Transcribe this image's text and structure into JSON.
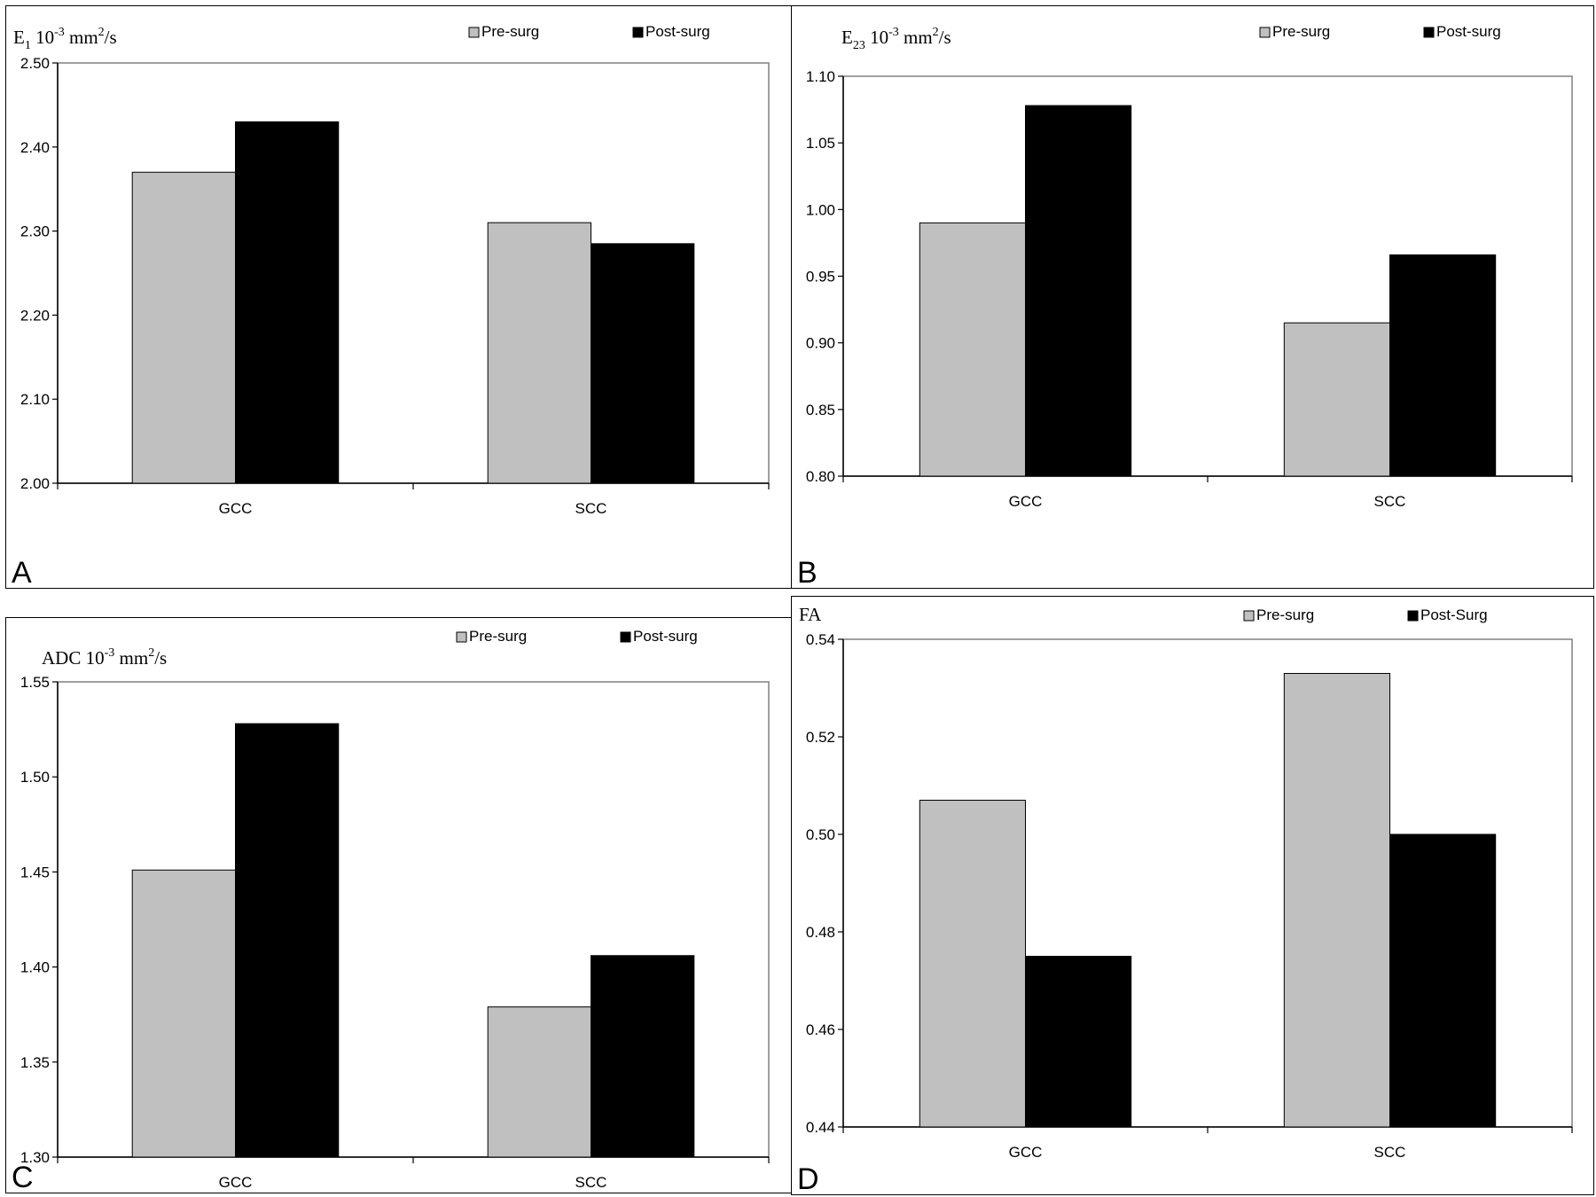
{
  "colors": {
    "pre": "#c0c0c0",
    "post": "#000000",
    "axis": "#808080"
  },
  "chart_data": [
    {
      "panel_letter": "A",
      "type": "bar",
      "title": {
        "base": "E",
        "sub": "1",
        "mid": " 10",
        "sup": "-3",
        "unit": " mm",
        "unit_sup": "2",
        "tail": "/s"
      },
      "categories": [
        "GCC",
        "SCC"
      ],
      "series": [
        {
          "name": "Pre-surg",
          "values": [
            2.37,
            2.31
          ]
        },
        {
          "name": "Post-surg",
          "values": [
            2.43,
            2.285
          ]
        }
      ],
      "ylim": [
        2.0,
        2.5
      ],
      "yticks": [
        "2.00",
        "2.10",
        "2.20",
        "2.30",
        "2.40",
        "2.50"
      ],
      "legend": "top-right",
      "grid": false
    },
    {
      "panel_letter": "B",
      "type": "bar",
      "title": {
        "base": "E",
        "sub": "23",
        "mid": " 10",
        "sup": "-3",
        "unit": " mm",
        "unit_sup": "2",
        "tail": "/s"
      },
      "categories": [
        "GCC",
        "SCC"
      ],
      "series": [
        {
          "name": "Pre-surg",
          "values": [
            0.99,
            0.915
          ]
        },
        {
          "name": "Post-surg",
          "values": [
            1.078,
            0.966
          ]
        }
      ],
      "ylim": [
        0.8,
        1.1
      ],
      "yticks": [
        "0.80",
        "0.85",
        "0.90",
        "0.95",
        "1.00",
        "1.05",
        "1.10"
      ],
      "legend": "top-right",
      "grid": false
    },
    {
      "panel_letter": "C",
      "type": "bar",
      "title": {
        "base": "ADC",
        "sub": "",
        "mid": " 10",
        "sup": "-3",
        "unit": " mm",
        "unit_sup": "2",
        "tail": "/s"
      },
      "categories": [
        "GCC",
        "SCC"
      ],
      "series": [
        {
          "name": "Pre-surg",
          "values": [
            1.451,
            1.379
          ]
        },
        {
          "name": "Post-surg",
          "values": [
            1.528,
            1.406
          ]
        }
      ],
      "ylim": [
        1.3,
        1.55
      ],
      "yticks": [
        "1.30",
        "1.35",
        "1.40",
        "1.45",
        "1.50",
        "1.55"
      ],
      "legend": "top-right",
      "grid": false
    },
    {
      "panel_letter": "D",
      "type": "bar",
      "title": {
        "base": "FA",
        "sub": "",
        "mid": "",
        "sup": "",
        "unit": "",
        "unit_sup": "",
        "tail": ""
      },
      "categories": [
        "GCC",
        "SCC"
      ],
      "series": [
        {
          "name": "Pre-surg",
          "values": [
            0.507,
            0.533
          ]
        },
        {
          "name": "Post-Surg",
          "values": [
            0.475,
            0.5
          ]
        }
      ],
      "ylim": [
        0.44,
        0.54
      ],
      "yticks": [
        "0.44",
        "0.46",
        "0.48",
        "0.50",
        "0.52",
        "0.54"
      ],
      "legend": "top-right",
      "grid": false
    }
  ]
}
